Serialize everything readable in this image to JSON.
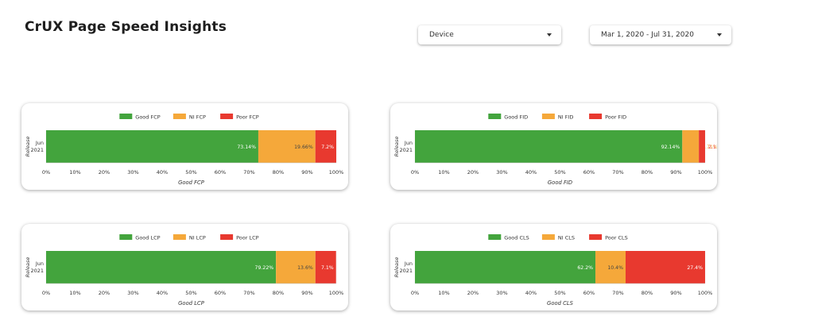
{
  "header": {
    "title": "CrUX Page Speed Insights",
    "device_dropdown": "Device",
    "date_dropdown": "Mar 1, 2020 - Jul 31, 2020"
  },
  "colors": {
    "good": "#43a43d",
    "ni": "#f5a83a",
    "poor": "#e8392f",
    "grid": "#e6e6e6"
  },
  "chart_data": [
    {
      "type": "bar",
      "orientation": "horizontal",
      "stacked": true,
      "categories": [
        [
          "Jun",
          "2021"
        ]
      ],
      "ylabel": "Release",
      "xlabel": "Good FCP",
      "xlim": [
        0,
        100
      ],
      "legend_position": "top-center",
      "xticks": [
        "0%",
        "10%",
        "20%",
        "30%",
        "40%",
        "50%",
        "60%",
        "70%",
        "80%",
        "90%",
        "100%"
      ],
      "series": [
        {
          "name": "Good FCP",
          "values": [
            73.14
          ],
          "label": "73.14%"
        },
        {
          "name": "NI FCP",
          "values": [
            19.66
          ],
          "label": "19.66%"
        },
        {
          "name": "Poor FCP",
          "values": [
            7.2
          ],
          "label": "7.2%"
        }
      ]
    },
    {
      "type": "bar",
      "orientation": "horizontal",
      "stacked": true,
      "categories": [
        [
          "Jun",
          "2021"
        ]
      ],
      "ylabel": "Release",
      "xlabel": "Good FID",
      "xlim": [
        0,
        100
      ],
      "legend_position": "top-center",
      "xticks": [
        "0%",
        "10%",
        "20%",
        "30%",
        "40%",
        "50%",
        "60%",
        "70%",
        "80%",
        "90%",
        "100%"
      ],
      "series": [
        {
          "name": "Good FID",
          "values": [
            92.14
          ],
          "label": "92.14%"
        },
        {
          "name": "NI FID",
          "values": [
            5.71
          ],
          "label": "5.71%"
        },
        {
          "name": "Poor FID",
          "values": [
            2.15
          ],
          "label": "2.1"
        }
      ]
    },
    {
      "type": "bar",
      "orientation": "horizontal",
      "stacked": true,
      "categories": [
        [
          "Jun",
          "2021"
        ]
      ],
      "ylabel": "Release",
      "xlabel": "Good LCP",
      "xlim": [
        0,
        100
      ],
      "legend_position": "top-center",
      "xticks": [
        "0%",
        "10%",
        "20%",
        "30%",
        "40%",
        "50%",
        "60%",
        "70%",
        "80%",
        "90%",
        "100%"
      ],
      "series": [
        {
          "name": "Good LCP",
          "values": [
            79.22
          ],
          "label": "79.22%"
        },
        {
          "name": "NI LCP",
          "values": [
            13.6
          ],
          "label": "13.6%"
        },
        {
          "name": "Poor LCP",
          "values": [
            7.1
          ],
          "label": "7.1%"
        }
      ]
    },
    {
      "type": "bar",
      "orientation": "horizontal",
      "stacked": true,
      "categories": [
        [
          "Jun",
          "2021"
        ]
      ],
      "ylabel": "Release",
      "xlabel": "Good CLS",
      "xlim": [
        0,
        100
      ],
      "legend_position": "top-center",
      "xticks": [
        "0%",
        "10%",
        "20%",
        "30%",
        "40%",
        "50%",
        "60%",
        "70%",
        "80%",
        "90%",
        "100%"
      ],
      "series": [
        {
          "name": "Good CLS",
          "values": [
            62.2
          ],
          "label": "62.2%"
        },
        {
          "name": "NI CLS",
          "values": [
            10.4
          ],
          "label": "10.4%"
        },
        {
          "name": "Poor CLS",
          "values": [
            27.4
          ],
          "label": "27.4%"
        }
      ]
    }
  ]
}
